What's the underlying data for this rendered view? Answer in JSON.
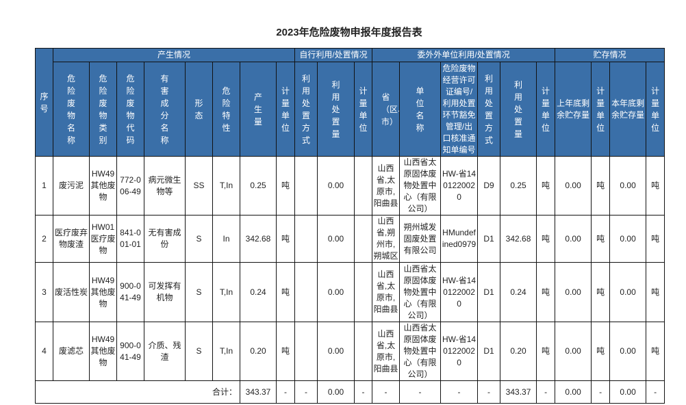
{
  "title": "2023年危险废物申报年度报告表",
  "header": {
    "groups": [
      "产生情况",
      "自行利用/处置情况",
      "委外外单位利用/处置情况",
      "贮存情况"
    ],
    "seq": "序号",
    "cols": [
      "危险废物名称",
      "危险废物类别",
      "危险废物代码",
      "有害成分名称",
      "形态",
      "危险特性",
      "产生量",
      "计量单位",
      "利用处置方式",
      "利用处置量",
      "计量单位",
      "省（区、市）",
      "单位名称",
      "危险废物经营许可证编号/利用处置环节豁免管理/出口核准通知单编号",
      "利用处置方式",
      "利用处置量",
      "计量单位",
      "上年底剩余贮存量",
      "计量单位",
      "本年底剩余贮存量",
      "计量单位"
    ]
  },
  "header_color": "#3a6fa8",
  "rows": [
    [
      "1",
      "废污泥",
      "HW49其他废物",
      "772-006-49",
      "病元微生物等",
      "SS",
      "T,In",
      "0.25",
      "吨",
      "",
      "0.00",
      "",
      "山西省,太原市,阳曲县",
      "山西省太原固体废物处置中心（有限公司）",
      "HW-省1401220020",
      "D9",
      "0.25",
      "吨",
      "0.00",
      "吨",
      "0.00",
      "吨"
    ],
    [
      "2",
      "医疗废弃物废渣",
      "HW01医疗废物",
      "841-001-01",
      "无有害成份",
      "S",
      "In",
      "342.68",
      "吨",
      "",
      "0.00",
      "",
      "山西省,朔州市,朔城区",
      "朔州城发固废处置有限公司",
      "HMundefined0979",
      "D1",
      "342.68",
      "吨",
      "0.00",
      "吨",
      "0.00",
      "吨"
    ],
    [
      "3",
      "废活性炭",
      "HW49其他废物",
      "900-041-49",
      "可发挥有机物",
      "S",
      "T,In",
      "0.24",
      "吨",
      "",
      "0.00",
      "",
      "山西省,太原市,阳曲县",
      "山西省太原固体废物处置中心（有限公司）",
      "HW-省1401220020",
      "D1",
      "0.24",
      "吨",
      "0.00",
      "吨",
      "0.00",
      "吨"
    ],
    [
      "4",
      "废滤芯",
      "HW49其他废物",
      "900-041-49",
      "介质、残渣",
      "S",
      "T,In",
      "0.20",
      "吨",
      "",
      "0.00",
      "",
      "山西省,太原市,阳曲县",
      "山西省太原固体废物处置中心（有限公司）",
      "HW-省1401220020",
      "D1",
      "0.20",
      "吨",
      "0.00",
      "吨",
      "0.00",
      "吨"
    ]
  ],
  "total": {
    "label": "合计：",
    "values": [
      "343.37",
      "-",
      "-",
      "0.00",
      "-",
      "-",
      "-",
      "-",
      "-",
      "343.37",
      "-",
      "0.00",
      "-",
      "0.00",
      "-"
    ]
  }
}
